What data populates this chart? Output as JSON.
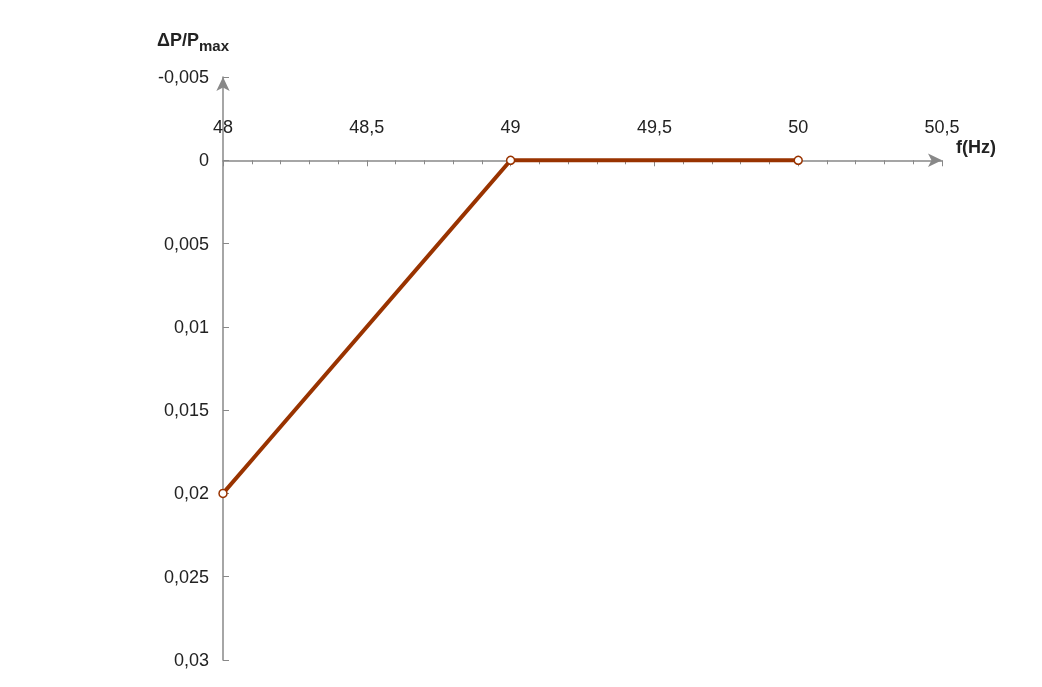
{
  "chart_data": {
    "type": "line",
    "xlabel": "f(Hz)",
    "ylabel": "ΔP/P$_{max}$",
    "x": [
      48,
      49,
      50
    ],
    "series": [
      {
        "color": "#993300",
        "values": [
          0.02,
          0,
          0
        ]
      }
    ],
    "xlim": [
      48,
      50.5
    ],
    "xticks": [
      48,
      {
        "value": 48.5,
        "label": "48,5"
      },
      49,
      {
        "value": 49.5,
        "label": "49,5"
      },
      50,
      {
        "value": 50.5,
        "label": "50,5"
      }
    ],
    "ylim": [
      0.03,
      -0.005
    ],
    "yticks": [
      {
        "value": -0.005,
        "label": "-0,005"
      },
      0,
      {
        "value": 0.005,
        "label": "0,005"
      },
      {
        "value": 0.01,
        "label": "0,01"
      },
      {
        "value": 0.015,
        "label": "0,015"
      },
      {
        "value": 0.02,
        "label": "0,02"
      },
      {
        "value": 0.025,
        "label": "0,025"
      },
      {
        "value": 0.03,
        "label": "0,03"
      }
    ],
    "marker": "circle",
    "line_style": "solid"
  }
}
